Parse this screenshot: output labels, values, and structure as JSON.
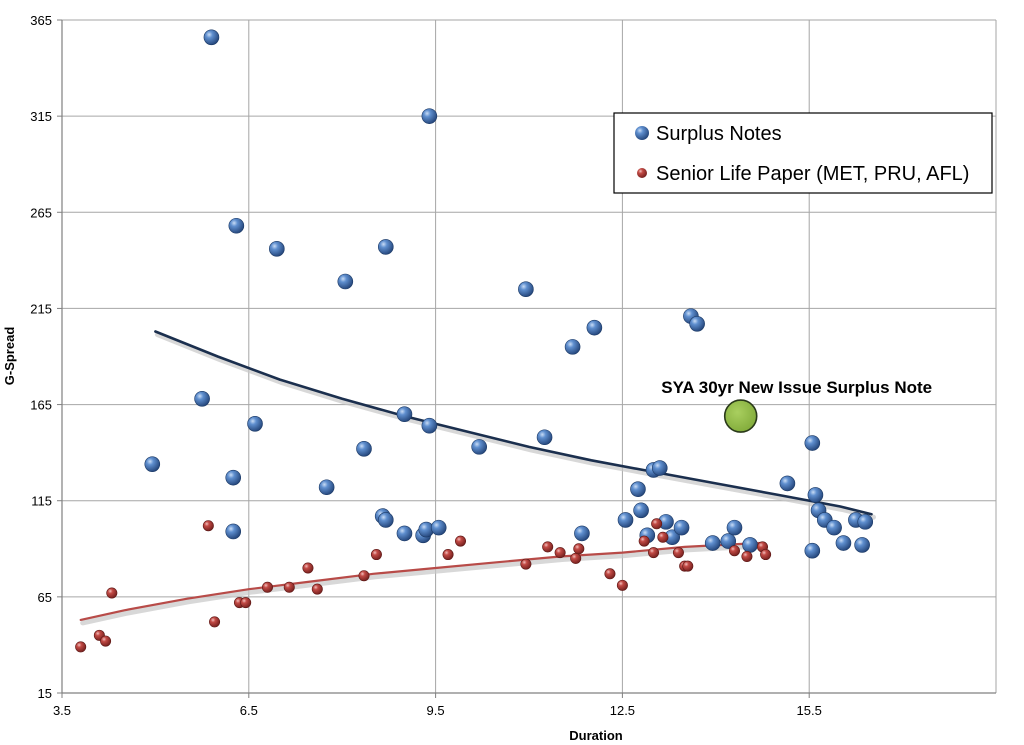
{
  "chart_data": {
    "type": "scatter",
    "title": "",
    "xlabel": "Duration",
    "ylabel": "G-Spread",
    "xlim": [
      3.5,
      18.5
    ],
    "ylim": [
      15,
      365
    ],
    "xticks": [
      "3.5",
      "6.5",
      "9.5",
      "12.5",
      "15.5"
    ],
    "xtick_values": [
      3.5,
      6.5,
      9.5,
      12.5,
      15.5
    ],
    "yticks": [
      "15",
      "65",
      "115",
      "165",
      "215",
      "265",
      "315",
      "365"
    ],
    "ytick_values": [
      15,
      65,
      115,
      165,
      215,
      265,
      315,
      365
    ],
    "grid": true,
    "legend_position": "top-right",
    "series": [
      {
        "name": "Surplus Notes",
        "color": "#3a6fb5",
        "x": [
          5.9,
          9.4,
          6.3,
          6.95,
          8.05,
          8.7,
          10.95,
          11.7,
          12.05,
          13.6,
          13.7,
          5.75,
          6.6,
          9.0,
          9.4,
          8.35,
          11.25,
          10.2,
          4.95,
          6.25,
          7.75,
          8.65,
          8.7,
          9.0,
          9.3,
          9.35,
          9.55,
          11.85,
          6.25,
          12.55,
          12.75,
          12.8,
          12.9,
          13.0,
          13.1,
          13.2,
          13.3,
          13.45,
          13.95,
          14.2,
          14.3,
          14.55,
          15.15,
          15.55,
          15.6,
          15.65,
          15.75,
          15.9,
          15.55,
          16.05,
          16.25,
          16.35,
          16.4
        ],
        "y": [
          356,
          315,
          258,
          246,
          229,
          247,
          225,
          195,
          205,
          211,
          207,
          168,
          155,
          160,
          154,
          142,
          148,
          143,
          134,
          127,
          122,
          107,
          105,
          98,
          97,
          100,
          101,
          98,
          99,
          105,
          121,
          110,
          97,
          131,
          132,
          104,
          96,
          101,
          93,
          94,
          101,
          92,
          124,
          145,
          118,
          110,
          105,
          101,
          89,
          93,
          105,
          92,
          104
        ]
      },
      {
        "name": "Senior Life Paper (MET, PRU, AFL)",
        "color": "#b23a3a",
        "x": [
          3.8,
          4.1,
          4.2,
          4.3,
          5.85,
          5.95,
          6.35,
          6.45,
          6.8,
          7.15,
          7.45,
          7.6,
          8.35,
          8.55,
          9.7,
          9.9,
          10.95,
          11.3,
          11.5,
          11.75,
          11.8,
          12.3,
          12.5,
          12.85,
          13.0,
          13.05,
          13.15,
          13.4,
          13.5,
          13.55,
          14.3,
          14.5,
          14.75,
          14.8
        ],
        "y": [
          39,
          45,
          42,
          67,
          102,
          52,
          62,
          62,
          70,
          70,
          80,
          69,
          76,
          87,
          87,
          94,
          82,
          91,
          88,
          85,
          90,
          77,
          71,
          94,
          88,
          103,
          96,
          88,
          81,
          81,
          89,
          86,
          91,
          87
        ]
      }
    ],
    "trendlines": [
      {
        "name": "Surplus Notes trend",
        "color": "#1b2f4e",
        "x": [
          5.0,
          6.0,
          7.0,
          8.0,
          9.0,
          10.0,
          11.0,
          12.0,
          13.0,
          14.0,
          15.0,
          16.0,
          16.5
        ],
        "y": [
          203,
          190,
          178,
          168,
          159,
          151,
          143,
          136,
          130,
          124,
          118,
          112,
          108
        ]
      },
      {
        "name": "Senior Life Paper trend",
        "color": "#b84b48",
        "x": [
          3.8,
          4.5,
          5.5,
          6.5,
          7.5,
          8.5,
          9.5,
          10.5,
          11.5,
          12.5,
          13.5,
          14.7
        ],
        "y": [
          53,
          58,
          64,
          69,
          73,
          77,
          80,
          83,
          86,
          88,
          91,
          93
        ]
      }
    ],
    "annotations": [
      {
        "text": "SYA 30yr New Issue Surplus Note",
        "x": 14.4,
        "y": 159,
        "color": "#8db643"
      }
    ]
  }
}
